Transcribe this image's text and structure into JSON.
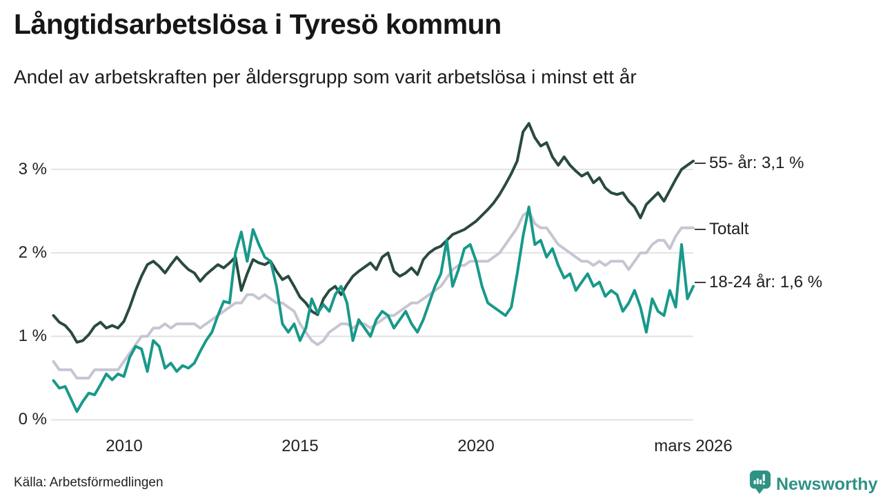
{
  "header": {
    "title": "Långtidsarbetslösa i Tyresö kommun",
    "subtitle": "Andel av arbetskraften per åldersgrupp som varit arbetslösa i minst ett år"
  },
  "footer": {
    "source": "Källa: Arbetsförmedlingen",
    "brand": "Newsworthy"
  },
  "colors": {
    "series_55": "#294a40",
    "series_total": "#c7c5d2",
    "series_18_24": "#18998a",
    "gridline": "#e2e2e6",
    "end_tick": "#3c3c3c",
    "brand_teal": "#2e9284"
  },
  "chart_data": {
    "type": "line",
    "title": "Långtidsarbetslösa i Tyresö kommun",
    "subtitle": "Andel av arbetskraften per åldersgrupp som varit arbetslösa i minst ett år",
    "ylabel": "",
    "xlabel": "",
    "ylim": [
      0,
      3.6
    ],
    "grid": "horizontal",
    "legend_position": "right-end-labels",
    "x_start_year": 2008,
    "x_step_months": 2,
    "x_ticks": [
      {
        "label": "2010",
        "year": 2010
      },
      {
        "label": "2015",
        "year": 2015
      },
      {
        "label": "2020",
        "year": 2020
      },
      {
        "label": "mars 2026",
        "year": 2026.17
      }
    ],
    "y_ticks": [
      {
        "label": "0 %",
        "value": 0
      },
      {
        "label": "1 %",
        "value": 1
      },
      {
        "label": "2 %",
        "value": 2
      },
      {
        "label": "3 %",
        "value": 3
      }
    ],
    "series": [
      {
        "name": "55- år",
        "end_label": "55- år: 3,1 %",
        "color": "#294a40",
        "values": [
          1.25,
          1.17,
          1.13,
          1.05,
          0.93,
          0.95,
          1.02,
          1.12,
          1.17,
          1.1,
          1.13,
          1.1,
          1.18,
          1.35,
          1.55,
          1.72,
          1.86,
          1.9,
          1.84,
          1.76,
          1.86,
          1.95,
          1.87,
          1.8,
          1.76,
          1.66,
          1.74,
          1.8,
          1.86,
          1.82,
          1.88,
          1.95,
          1.55,
          1.75,
          1.92,
          1.88,
          1.86,
          1.9,
          1.78,
          1.68,
          1.72,
          1.6,
          1.47,
          1.4,
          1.3,
          1.26,
          1.45,
          1.55,
          1.6,
          1.5,
          1.62,
          1.72,
          1.78,
          1.83,
          1.88,
          1.8,
          1.95,
          2.0,
          1.78,
          1.72,
          1.76,
          1.82,
          1.74,
          1.92,
          2.0,
          2.05,
          2.08,
          2.15,
          2.22,
          2.25,
          2.28,
          2.33,
          2.38,
          2.45,
          2.52,
          2.6,
          2.7,
          2.82,
          2.95,
          3.1,
          3.45,
          3.55,
          3.38,
          3.28,
          3.32,
          3.15,
          3.05,
          3.15,
          3.05,
          2.98,
          2.92,
          2.96,
          2.84,
          2.9,
          2.78,
          2.72,
          2.7,
          2.72,
          2.62,
          2.55,
          2.42,
          2.58,
          2.65,
          2.72,
          2.62,
          2.75,
          2.88,
          3.0,
          3.05,
          3.1
        ]
      },
      {
        "name": "Totalt",
        "end_label": "Totalt",
        "color": "#c7c5d2",
        "values": [
          0.7,
          0.6,
          0.6,
          0.6,
          0.5,
          0.5,
          0.5,
          0.6,
          0.6,
          0.6,
          0.6,
          0.6,
          0.7,
          0.8,
          0.9,
          1.0,
          1.0,
          1.1,
          1.1,
          1.15,
          1.1,
          1.15,
          1.15,
          1.15,
          1.15,
          1.1,
          1.15,
          1.2,
          1.25,
          1.3,
          1.35,
          1.4,
          1.4,
          1.5,
          1.5,
          1.45,
          1.5,
          1.45,
          1.4,
          1.4,
          1.35,
          1.3,
          1.15,
          1.05,
          0.95,
          0.9,
          0.95,
          1.05,
          1.1,
          1.15,
          1.15,
          1.1,
          1.15,
          1.15,
          1.1,
          1.15,
          1.2,
          1.25,
          1.25,
          1.3,
          1.35,
          1.4,
          1.4,
          1.45,
          1.5,
          1.55,
          1.6,
          1.7,
          1.8,
          1.85,
          1.85,
          1.9,
          1.9,
          1.9,
          1.9,
          1.95,
          2.0,
          2.1,
          2.2,
          2.3,
          2.45,
          2.5,
          2.35,
          2.3,
          2.3,
          2.2,
          2.1,
          2.05,
          2.0,
          1.95,
          1.9,
          1.9,
          1.85,
          1.9,
          1.85,
          1.9,
          1.9,
          1.9,
          1.8,
          1.9,
          2.0,
          2.0,
          2.1,
          2.15,
          2.15,
          2.05,
          2.2,
          2.3,
          2.3,
          2.3
        ]
      },
      {
        "name": "18-24 år",
        "end_label": "18-24 år: 1,6 %",
        "color": "#18998a",
        "values": [
          0.47,
          0.38,
          0.4,
          0.25,
          0.1,
          0.22,
          0.32,
          0.3,
          0.42,
          0.55,
          0.48,
          0.55,
          0.52,
          0.75,
          0.88,
          0.85,
          0.58,
          0.95,
          0.88,
          0.62,
          0.68,
          0.58,
          0.65,
          0.62,
          0.68,
          0.82,
          0.95,
          1.05,
          1.25,
          1.42,
          1.4,
          2.0,
          2.25,
          1.9,
          2.28,
          2.1,
          1.95,
          1.9,
          1.6,
          1.15,
          1.05,
          1.15,
          0.95,
          1.1,
          1.45,
          1.28,
          1.38,
          1.3,
          1.5,
          1.6,
          1.4,
          0.95,
          1.2,
          1.1,
          1.0,
          1.2,
          1.3,
          1.25,
          1.1,
          1.2,
          1.3,
          1.15,
          1.05,
          1.2,
          1.4,
          1.6,
          1.75,
          2.15,
          1.6,
          1.8,
          2.05,
          2.1,
          1.9,
          1.6,
          1.4,
          1.35,
          1.3,
          1.25,
          1.35,
          1.75,
          2.2,
          2.55,
          2.1,
          2.15,
          1.95,
          2.05,
          1.85,
          1.7,
          1.75,
          1.55,
          1.65,
          1.75,
          1.6,
          1.65,
          1.48,
          1.55,
          1.5,
          1.3,
          1.4,
          1.55,
          1.35,
          1.05,
          1.45,
          1.3,
          1.25,
          1.55,
          1.35,
          2.1,
          1.45,
          1.6
        ]
      }
    ]
  }
}
